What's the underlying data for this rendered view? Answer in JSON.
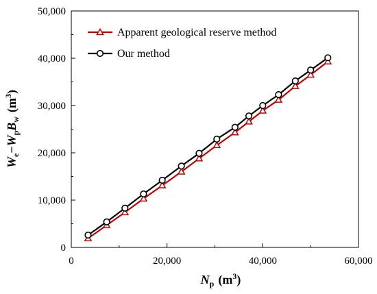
{
  "chart_data": {
    "type": "line",
    "xlabel_parts": {
      "main": "N",
      "sub": "p",
      "unit_prefix": "(m",
      "unit_sup": "3",
      "unit_suffix": ")"
    },
    "ylabel_parts": {
      "w1": "W",
      "s1": "e",
      "minus": "−",
      "w2": "W",
      "s2": "p",
      "b": "B",
      "s3": "w",
      "unit_prefix": "(m",
      "unit_sup": "3",
      "unit_suffix": ")"
    },
    "xlim": [
      0,
      60000
    ],
    "ylim": [
      0,
      50000
    ],
    "xticks": [
      0,
      20000,
      40000,
      60000
    ],
    "yticks": [
      0,
      10000,
      20000,
      30000,
      40000,
      50000
    ],
    "xtick_labels": [
      "0",
      "20,000",
      "40,000",
      "60,000"
    ],
    "ytick_labels": [
      "0",
      "10,000",
      "20,000",
      "30,000",
      "40,000",
      "50,000"
    ],
    "grid": false,
    "legend_position": "top-left",
    "series": [
      {
        "name": "Apparent geological reserve method",
        "color": "#c00000",
        "marker": "triangle",
        "x": [
          3500,
          7400,
          11200,
          15100,
          19000,
          23000,
          26700,
          30400,
          34200,
          37100,
          40000,
          43300,
          46800,
          50000,
          53600
        ],
        "y": [
          1900,
          4700,
          7400,
          10300,
          13100,
          16000,
          18800,
          21600,
          24300,
          26600,
          28900,
          31200,
          34100,
          36500,
          39300
        ]
      },
      {
        "name": "Our method",
        "color": "#000000",
        "marker": "circle",
        "x": [
          3500,
          7400,
          11200,
          15100,
          19000,
          23000,
          26700,
          30400,
          34200,
          37100,
          40000,
          43300,
          46800,
          50000,
          53600
        ],
        "y": [
          2600,
          5400,
          8300,
          11300,
          14200,
          17200,
          19900,
          22900,
          25400,
          27800,
          30000,
          32300,
          35200,
          37500,
          40100
        ]
      }
    ]
  }
}
